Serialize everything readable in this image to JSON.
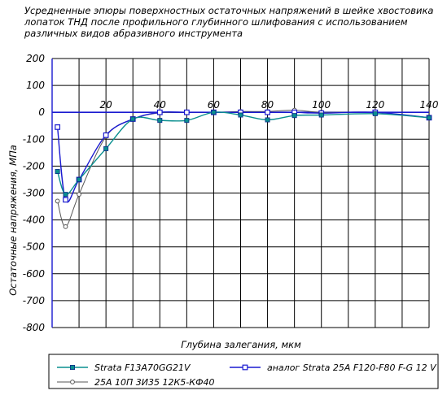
{
  "title_lines": [
    "Усредненные эпюры поверхностных остаточных напряжений в шейке хвостовика",
    "лопаток ТНД после профильного глубинного шлифования с использованием",
    "различных видов абразивного инструмента"
  ],
  "chart_data": {
    "type": "line",
    "xlabel": "Глубина залегания, мкм",
    "ylabel": "Остаточные напряжения, МПа",
    "xlim": [
      0,
      140
    ],
    "ylim": [
      -800,
      200
    ],
    "x_ticks": [
      20,
      40,
      60,
      80,
      100,
      120,
      140
    ],
    "y_ticks": [
      200,
      100,
      0,
      -100,
      -200,
      -300,
      -400,
      -500,
      -600,
      -700,
      -800
    ],
    "grid": true,
    "legend_position": "bottom",
    "series": [
      {
        "name": "Strata F13A70GG21V",
        "color": "#0a8f8f",
        "marker": "filled-square",
        "x": [
          2,
          5,
          10,
          20,
          30,
          40,
          50,
          60,
          70,
          80,
          90,
          100,
          120,
          140
        ],
        "y": [
          -220,
          -305,
          -250,
          -135,
          -25,
          -30,
          -30,
          0,
          -10,
          -28,
          -12,
          -10,
          -5,
          -20
        ]
      },
      {
        "name": "аналог Strata 25А F120-F80 F-G 12 V",
        "color": "#1a1ad0",
        "marker": "open-square",
        "x": [
          2,
          5,
          10,
          20,
          30,
          40,
          50,
          60,
          70,
          80,
          90,
          100,
          120,
          140
        ],
        "y": [
          -55,
          -325,
          -250,
          -85,
          -25,
          0,
          0,
          0,
          0,
          0,
          0,
          -3,
          0,
          -20
        ]
      },
      {
        "name": "25А 10П 3И35 12К5-КФ40",
        "color": "#555555",
        "marker": "open-circle",
        "x": [
          2,
          5,
          10,
          20,
          30,
          40,
          50,
          60,
          70,
          80,
          90,
          100,
          120,
          140
        ],
        "y": [
          -330,
          -425,
          -305,
          -90,
          -25,
          -2,
          0,
          0,
          3,
          3,
          8,
          0,
          0,
          -20
        ]
      }
    ]
  }
}
